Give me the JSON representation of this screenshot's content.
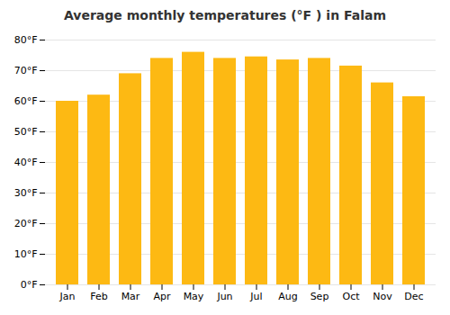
{
  "chart_data": {
    "type": "bar",
    "title": "Average monthly temperatures (°F ) in Falam",
    "categories": [
      "Jan",
      "Feb",
      "Mar",
      "Apr",
      "May",
      "Jun",
      "Jul",
      "Aug",
      "Sep",
      "Oct",
      "Nov",
      "Dec"
    ],
    "values": [
      60,
      62,
      69,
      74,
      76,
      74,
      74.5,
      73.5,
      74,
      71.5,
      66,
      61.5
    ],
    "color": "#FDB913",
    "ylim": [
      0,
      80
    ],
    "yticks": [
      {
        "value": 0,
        "label": "0°F"
      },
      {
        "value": 10,
        "label": "10°F"
      },
      {
        "value": 20,
        "label": "20°F"
      },
      {
        "value": 30,
        "label": "30°F"
      },
      {
        "value": 40,
        "label": "40°F"
      },
      {
        "value": 50,
        "label": "50°F"
      },
      {
        "value": 60,
        "label": "60°F"
      },
      {
        "value": 70,
        "label": "70°F"
      },
      {
        "value": 80,
        "label": "80°F"
      }
    ],
    "grid": true
  }
}
